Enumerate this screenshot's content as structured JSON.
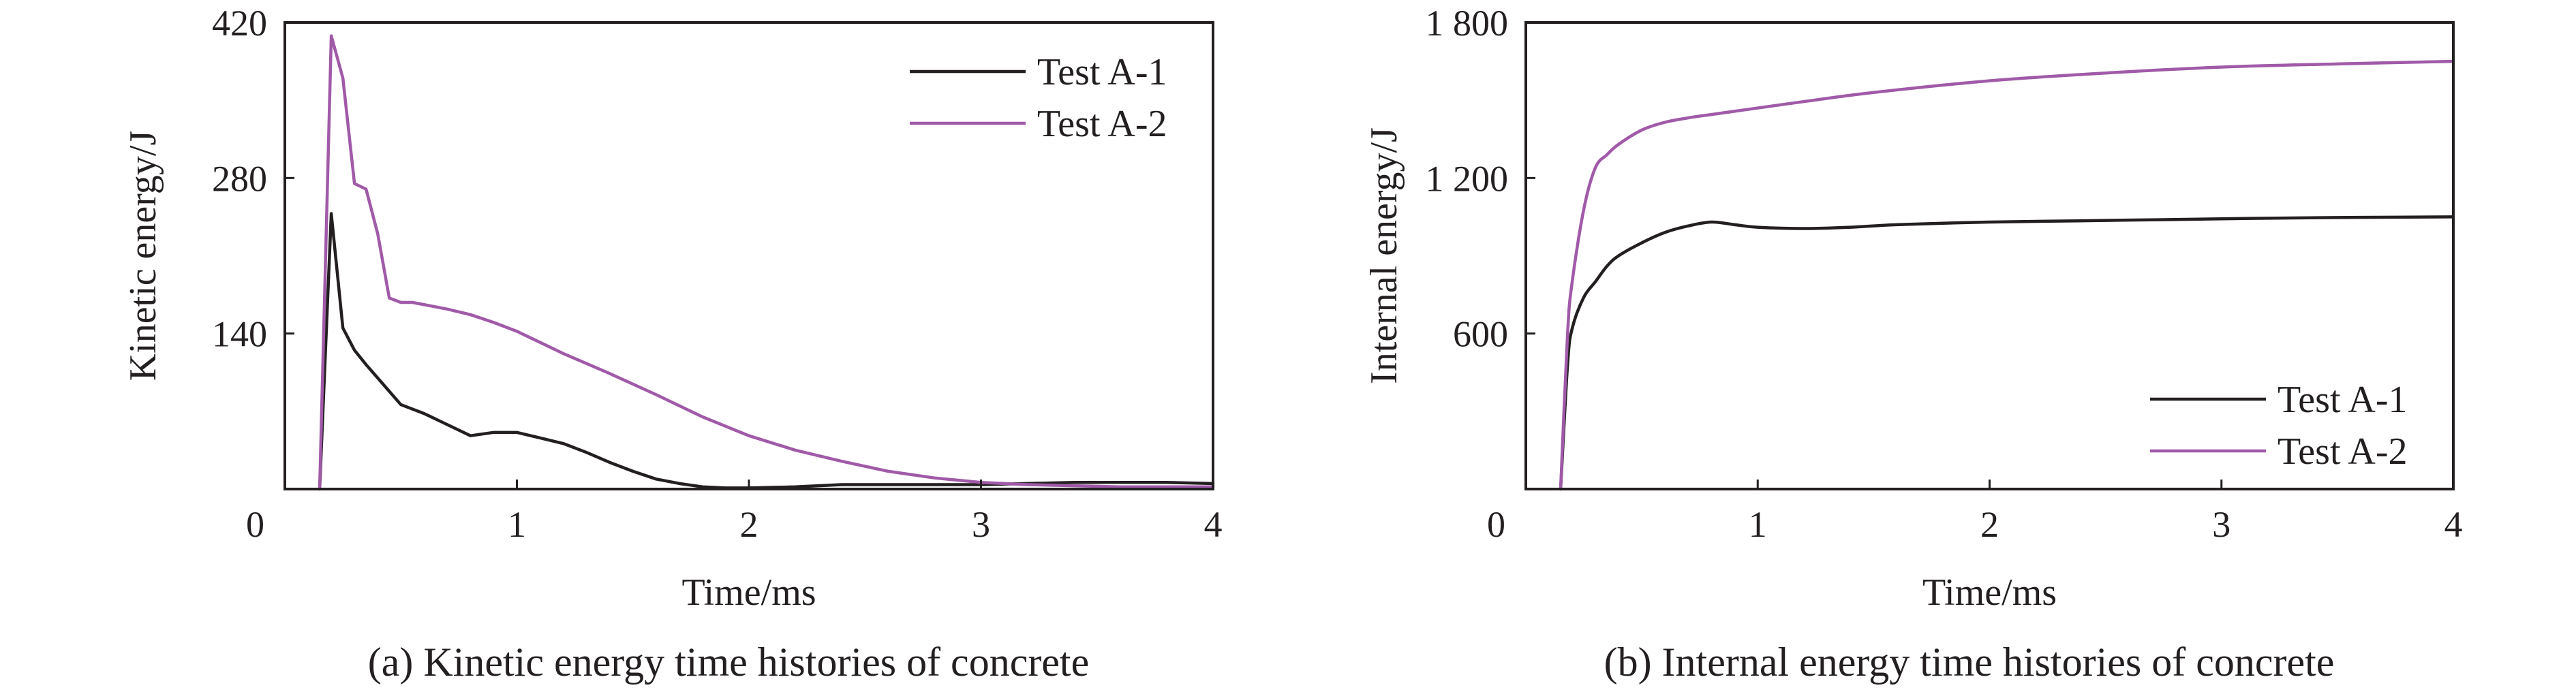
{
  "chart_data": [
    {
      "type": "line",
      "xlabel": "Time/ms",
      "ylabel": "Kinetic energy/J",
      "caption": "(a) Kinetic energy time histories of concrete",
      "xlim": [
        0,
        4
      ],
      "ylim": [
        0,
        420
      ],
      "xticks": [
        0,
        1,
        2,
        3,
        4
      ],
      "xtick_labels": [
        "0",
        "1",
        "2",
        "3",
        "4"
      ],
      "yticks": [
        0,
        140,
        280,
        420
      ],
      "ytick_labels": [
        "",
        "140",
        "280",
        "420"
      ],
      "grid": false,
      "legend": "top-right",
      "series": [
        {
          "name": "Test A-1",
          "color": "#231f20",
          "x": [
            0.15,
            0.2,
            0.25,
            0.3,
            0.35,
            0.4,
            0.45,
            0.5,
            0.55,
            0.6,
            0.65,
            0.7,
            0.8,
            0.9,
            1.0,
            1.1,
            1.2,
            1.3,
            1.4,
            1.5,
            1.6,
            1.7,
            1.8,
            1.9,
            2.0,
            2.2,
            2.4,
            2.6,
            2.8,
            3.0,
            3.2,
            3.4,
            3.6,
            3.8,
            4.0
          ],
          "y": [
            0,
            248,
            145,
            125,
            112,
            100,
            88,
            76,
            72,
            68,
            63,
            58,
            48,
            51,
            51,
            46,
            41,
            33,
            24,
            16,
            9,
            5,
            2,
            1,
            1,
            2,
            4,
            4,
            4,
            4,
            5,
            6,
            6,
            6,
            5
          ]
        },
        {
          "name": "Test A-2",
          "color": "#a05aa8",
          "x": [
            0.15,
            0.2,
            0.25,
            0.3,
            0.35,
            0.4,
            0.45,
            0.5,
            0.55,
            0.6,
            0.7,
            0.8,
            0.9,
            1.0,
            1.1,
            1.2,
            1.4,
            1.6,
            1.8,
            2.0,
            2.2,
            2.4,
            2.6,
            2.8,
            3.0,
            3.2,
            3.4,
            3.6,
            3.8,
            4.0
          ],
          "y": [
            0,
            408,
            370,
            275,
            270,
            230,
            172,
            168,
            168,
            166,
            162,
            157,
            150,
            142,
            132,
            122,
            104,
            85,
            65,
            48,
            35,
            25,
            16,
            10,
            6,
            4,
            3,
            2,
            2,
            2
          ]
        }
      ]
    },
    {
      "type": "line",
      "xlabel": "Time/ms",
      "ylabel": "Internal energy/J",
      "caption": "(b) Internal energy time histories of concrete",
      "xlim": [
        0,
        4
      ],
      "ylim": [
        0,
        1800
      ],
      "xticks": [
        0,
        1,
        2,
        3,
        4
      ],
      "xtick_labels": [
        "0",
        "1",
        "2",
        "3",
        "4"
      ],
      "yticks": [
        0,
        600,
        1200,
        1800
      ],
      "ytick_labels": [
        "",
        "600",
        "1 200",
        "1 800"
      ],
      "grid": false,
      "legend": "bottom-right",
      "series": [
        {
          "name": "Test A-1",
          "color": "#231f20",
          "x": [
            0.15,
            0.18,
            0.2,
            0.25,
            0.3,
            0.35,
            0.4,
            0.5,
            0.6,
            0.7,
            0.8,
            0.9,
            1.0,
            1.2,
            1.4,
            1.6,
            2.0,
            2.4,
            2.8,
            3.2,
            3.6,
            4.0
          ],
          "y": [
            0,
            480,
            620,
            740,
            800,
            860,
            900,
            950,
            990,
            1015,
            1030,
            1020,
            1010,
            1005,
            1010,
            1020,
            1030,
            1035,
            1040,
            1045,
            1048,
            1050
          ],
          "curve": "smooth"
        },
        {
          "name": "Test A-2",
          "color": "#a05aa8",
          "x": [
            0.15,
            0.18,
            0.2,
            0.25,
            0.3,
            0.35,
            0.4,
            0.5,
            0.6,
            0.7,
            0.8,
            1.0,
            1.2,
            1.5,
            2.0,
            2.5,
            3.0,
            3.5,
            4.0
          ],
          "y": [
            0,
            600,
            800,
            1080,
            1240,
            1290,
            1330,
            1385,
            1415,
            1432,
            1445,
            1470,
            1495,
            1530,
            1575,
            1605,
            1628,
            1640,
            1650
          ],
          "curve": "smooth"
        }
      ]
    }
  ]
}
